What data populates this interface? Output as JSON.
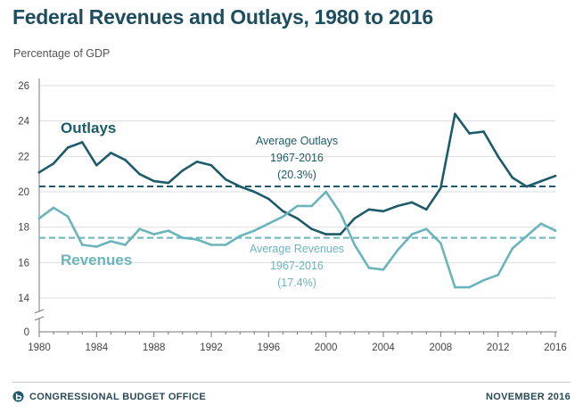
{
  "footer": {
    "organization": "CONGRESSIONAL BUDGET OFFICE",
    "date": "NOVEMBER 2016"
  },
  "colors": {
    "outlays": "#1d5b6a",
    "revenues": "#6ab5bb",
    "title": "#1d4e5f",
    "axis": "#777777",
    "grid": "#dddddd"
  },
  "chart_data": {
    "type": "line",
    "title": "Federal Revenues and Outlays, 1980 to 2016",
    "ylabel": "Percentage of GDP",
    "xlabel": "",
    "xlim": [
      1980,
      2016
    ],
    "ylim": [
      12,
      26
    ],
    "y_ticks": [
      14,
      16,
      18,
      20,
      22,
      24,
      26
    ],
    "y_bottom_label": "0",
    "x_ticks": [
      1980,
      1984,
      1988,
      1992,
      1996,
      2000,
      2004,
      2008,
      2012,
      2016
    ],
    "grid": true,
    "x": [
      1980,
      1981,
      1982,
      1983,
      1984,
      1985,
      1986,
      1987,
      1988,
      1989,
      1990,
      1991,
      1992,
      1993,
      1994,
      1995,
      1996,
      1997,
      1998,
      1999,
      2000,
      2001,
      2002,
      2003,
      2004,
      2005,
      2006,
      2007,
      2008,
      2009,
      2010,
      2011,
      2012,
      2013,
      2014,
      2015,
      2016
    ],
    "series": [
      {
        "name": "Outlays",
        "values": [
          21.1,
          21.6,
          22.5,
          22.8,
          21.5,
          22.2,
          21.8,
          21.0,
          20.6,
          20.5,
          21.2,
          21.7,
          21.5,
          20.7,
          20.3,
          20.0,
          19.6,
          18.9,
          18.5,
          17.9,
          17.6,
          17.6,
          18.5,
          19.0,
          18.9,
          19.2,
          19.4,
          19.0,
          20.2,
          24.4,
          23.3,
          23.4,
          22.0,
          20.8,
          20.3,
          20.6,
          20.9
        ],
        "average_value": 20.3,
        "average_label": [
          "Average Outlays",
          "1967-2016",
          "(20.3%)"
        ]
      },
      {
        "name": "Revenues",
        "values": [
          18.5,
          19.1,
          18.6,
          17.0,
          16.9,
          17.2,
          17.0,
          17.9,
          17.6,
          17.8,
          17.4,
          17.3,
          17.0,
          17.0,
          17.5,
          17.8,
          18.2,
          18.6,
          19.2,
          19.2,
          20.0,
          18.8,
          17.0,
          15.7,
          15.6,
          16.7,
          17.6,
          17.9,
          17.1,
          14.6,
          14.6,
          15.0,
          15.3,
          16.8,
          17.5,
          18.2,
          17.8
        ],
        "average_value": 17.4,
        "average_label": [
          "Average Revenues",
          "1967-2016",
          "(17.4%)"
        ]
      }
    ]
  }
}
